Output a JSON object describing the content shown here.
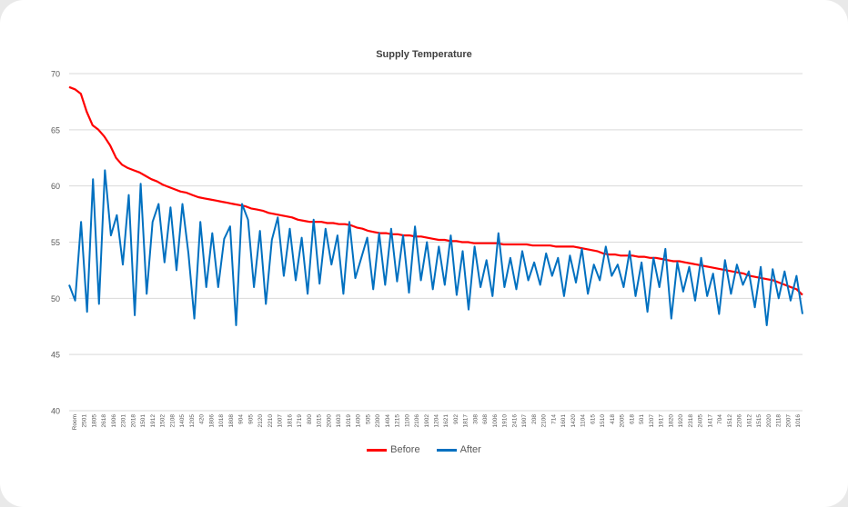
{
  "chart_data": {
    "type": "line",
    "title": "Supply Temperature",
    "xlabel": "",
    "ylabel": "",
    "ylim": [
      40,
      70
    ],
    "yticks": [
      40,
      45,
      50,
      55,
      60,
      65,
      70
    ],
    "grid": "horizontal",
    "legend_position": "bottom",
    "x_tick_labels": [
      "Room",
      "2501",
      "1805",
      "2618",
      "1906",
      "2301",
      "2018",
      "1501",
      "1912",
      "1502",
      "2108",
      "1405",
      "1205",
      "420",
      "1806",
      "1018",
      "1808",
      "904",
      "905",
      "2120",
      "2210",
      "1007",
      "1816",
      "1719",
      "800",
      "1015",
      "2000",
      "1603",
      "1019",
      "1400",
      "505",
      "2300",
      "1404",
      "1215",
      "1100",
      "2106",
      "1902",
      "1204",
      "1621",
      "902",
      "1817",
      "308",
      "608",
      "1006",
      "1910",
      "2416",
      "1907",
      "208",
      "2100",
      "714",
      "1601",
      "1420",
      "1104",
      "615",
      "1510",
      "418",
      "2005",
      "618",
      "501",
      "1207",
      "1917",
      "1820",
      "1920",
      "2318",
      "2405",
      "1417",
      "704",
      "1512",
      "2206",
      "1612",
      "1515",
      "2020",
      "2118",
      "2007",
      "1016"
    ],
    "series": [
      {
        "name": "Before",
        "color": "#ff0000",
        "values": [
          68.8,
          68.6,
          68.2,
          66.6,
          65.4,
          65.0,
          64.4,
          63.6,
          62.5,
          61.9,
          61.6,
          61.4,
          61.2,
          60.9,
          60.6,
          60.4,
          60.1,
          59.9,
          59.7,
          59.5,
          59.4,
          59.2,
          59.0,
          58.9,
          58.8,
          58.7,
          58.6,
          58.5,
          58.4,
          58.3,
          58.2,
          58.0,
          57.9,
          57.8,
          57.6,
          57.5,
          57.4,
          57.3,
          57.2,
          57.0,
          56.9,
          56.8,
          56.8,
          56.8,
          56.7,
          56.7,
          56.6,
          56.6,
          56.5,
          56.3,
          56.2,
          56.0,
          55.9,
          55.8,
          55.8,
          55.7,
          55.7,
          55.6,
          55.6,
          55.5,
          55.5,
          55.4,
          55.3,
          55.2,
          55.2,
          55.1,
          55.1,
          55.0,
          55.0,
          54.9,
          54.9,
          54.9,
          54.9,
          54.9,
          54.8,
          54.8,
          54.8,
          54.8,
          54.8,
          54.7,
          54.7,
          54.7,
          54.7,
          54.6,
          54.6,
          54.6,
          54.6,
          54.5,
          54.4,
          54.3,
          54.2,
          54.0,
          53.9,
          53.9,
          53.8,
          53.8,
          53.8,
          53.7,
          53.7,
          53.6,
          53.6,
          53.5,
          53.4,
          53.3,
          53.3,
          53.2,
          53.1,
          53.0,
          52.9,
          52.8,
          52.7,
          52.6,
          52.5,
          52.4,
          52.3,
          52.2,
          52.0,
          51.9,
          51.8,
          51.7,
          51.6,
          51.4,
          51.2,
          51.0,
          50.8,
          50.3
        ]
      },
      {
        "name": "After",
        "color": "#0070c0",
        "values": [
          51.2,
          49.8,
          56.8,
          48.8,
          60.6,
          49.5,
          61.4,
          55.6,
          57.4,
          53.0,
          59.2,
          48.5,
          60.2,
          50.4,
          56.8,
          58.4,
          53.2,
          58.1,
          52.5,
          58.4,
          54.0,
          48.2,
          56.8,
          51.0,
          55.8,
          51.0,
          55.3,
          56.4,
          47.6,
          58.4,
          57.0,
          51.0,
          56.0,
          49.5,
          55.2,
          57.2,
          52.0,
          56.2,
          51.6,
          55.4,
          50.4,
          57.0,
          51.3,
          56.2,
          53.0,
          55.6,
          50.4,
          56.8,
          51.8,
          53.6,
          55.4,
          50.8,
          55.8,
          51.2,
          56.2,
          51.5,
          55.6,
          50.5,
          56.4,
          51.6,
          55.0,
          50.8,
          54.6,
          51.2,
          55.6,
          50.3,
          54.2,
          49.0,
          54.6,
          51.0,
          53.4,
          50.2,
          55.8,
          51.0,
          53.6,
          50.8,
          54.2,
          51.6,
          53.2,
          51.2,
          54.0,
          52.0,
          53.6,
          50.2,
          53.8,
          51.4,
          54.4,
          50.4,
          53.0,
          51.6,
          54.6,
          52.0,
          53.0,
          51.0,
          54.2,
          50.2,
          53.2,
          48.8,
          53.6,
          51.0,
          54.4,
          48.2,
          53.2,
          50.6,
          52.8,
          49.8,
          53.6,
          50.2,
          52.2,
          48.6,
          53.4,
          50.4,
          53.0,
          51.2,
          52.4,
          49.2,
          52.8,
          47.6,
          52.6,
          50.0,
          52.4,
          49.8,
          52.0,
          48.6
        ]
      }
    ]
  }
}
